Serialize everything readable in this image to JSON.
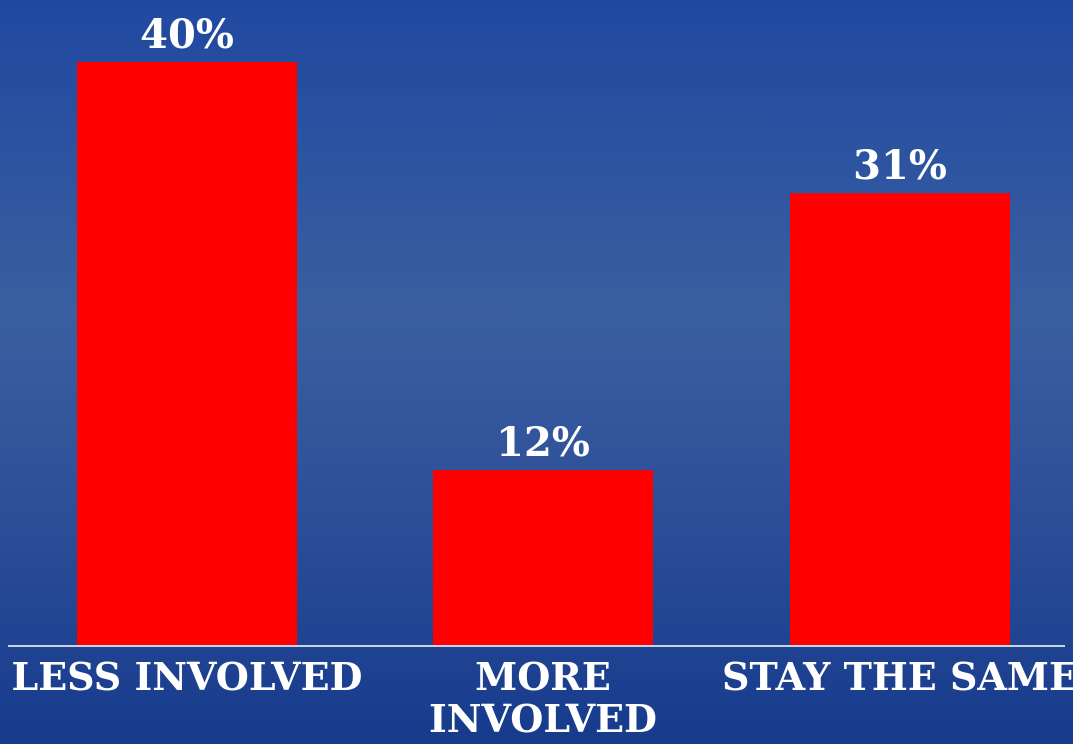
{
  "chart_data": {
    "type": "bar",
    "categories": [
      "LESS INVOLVED",
      "MORE INVOLVED",
      "STAY THE SAME"
    ],
    "category_lines": [
      [
        "LESS INVOLVED"
      ],
      [
        "MORE",
        "INVOLVED"
      ],
      [
        "STAY THE SAME"
      ]
    ],
    "values": [
      40,
      12,
      31
    ],
    "value_labels": [
      "40%",
      "12%",
      "31%"
    ],
    "ylim": [
      0,
      40
    ],
    "grid": false,
    "colors": {
      "bar": "#ff0000",
      "baseline": "#c8d2e6",
      "text": "#ffffff"
    }
  }
}
